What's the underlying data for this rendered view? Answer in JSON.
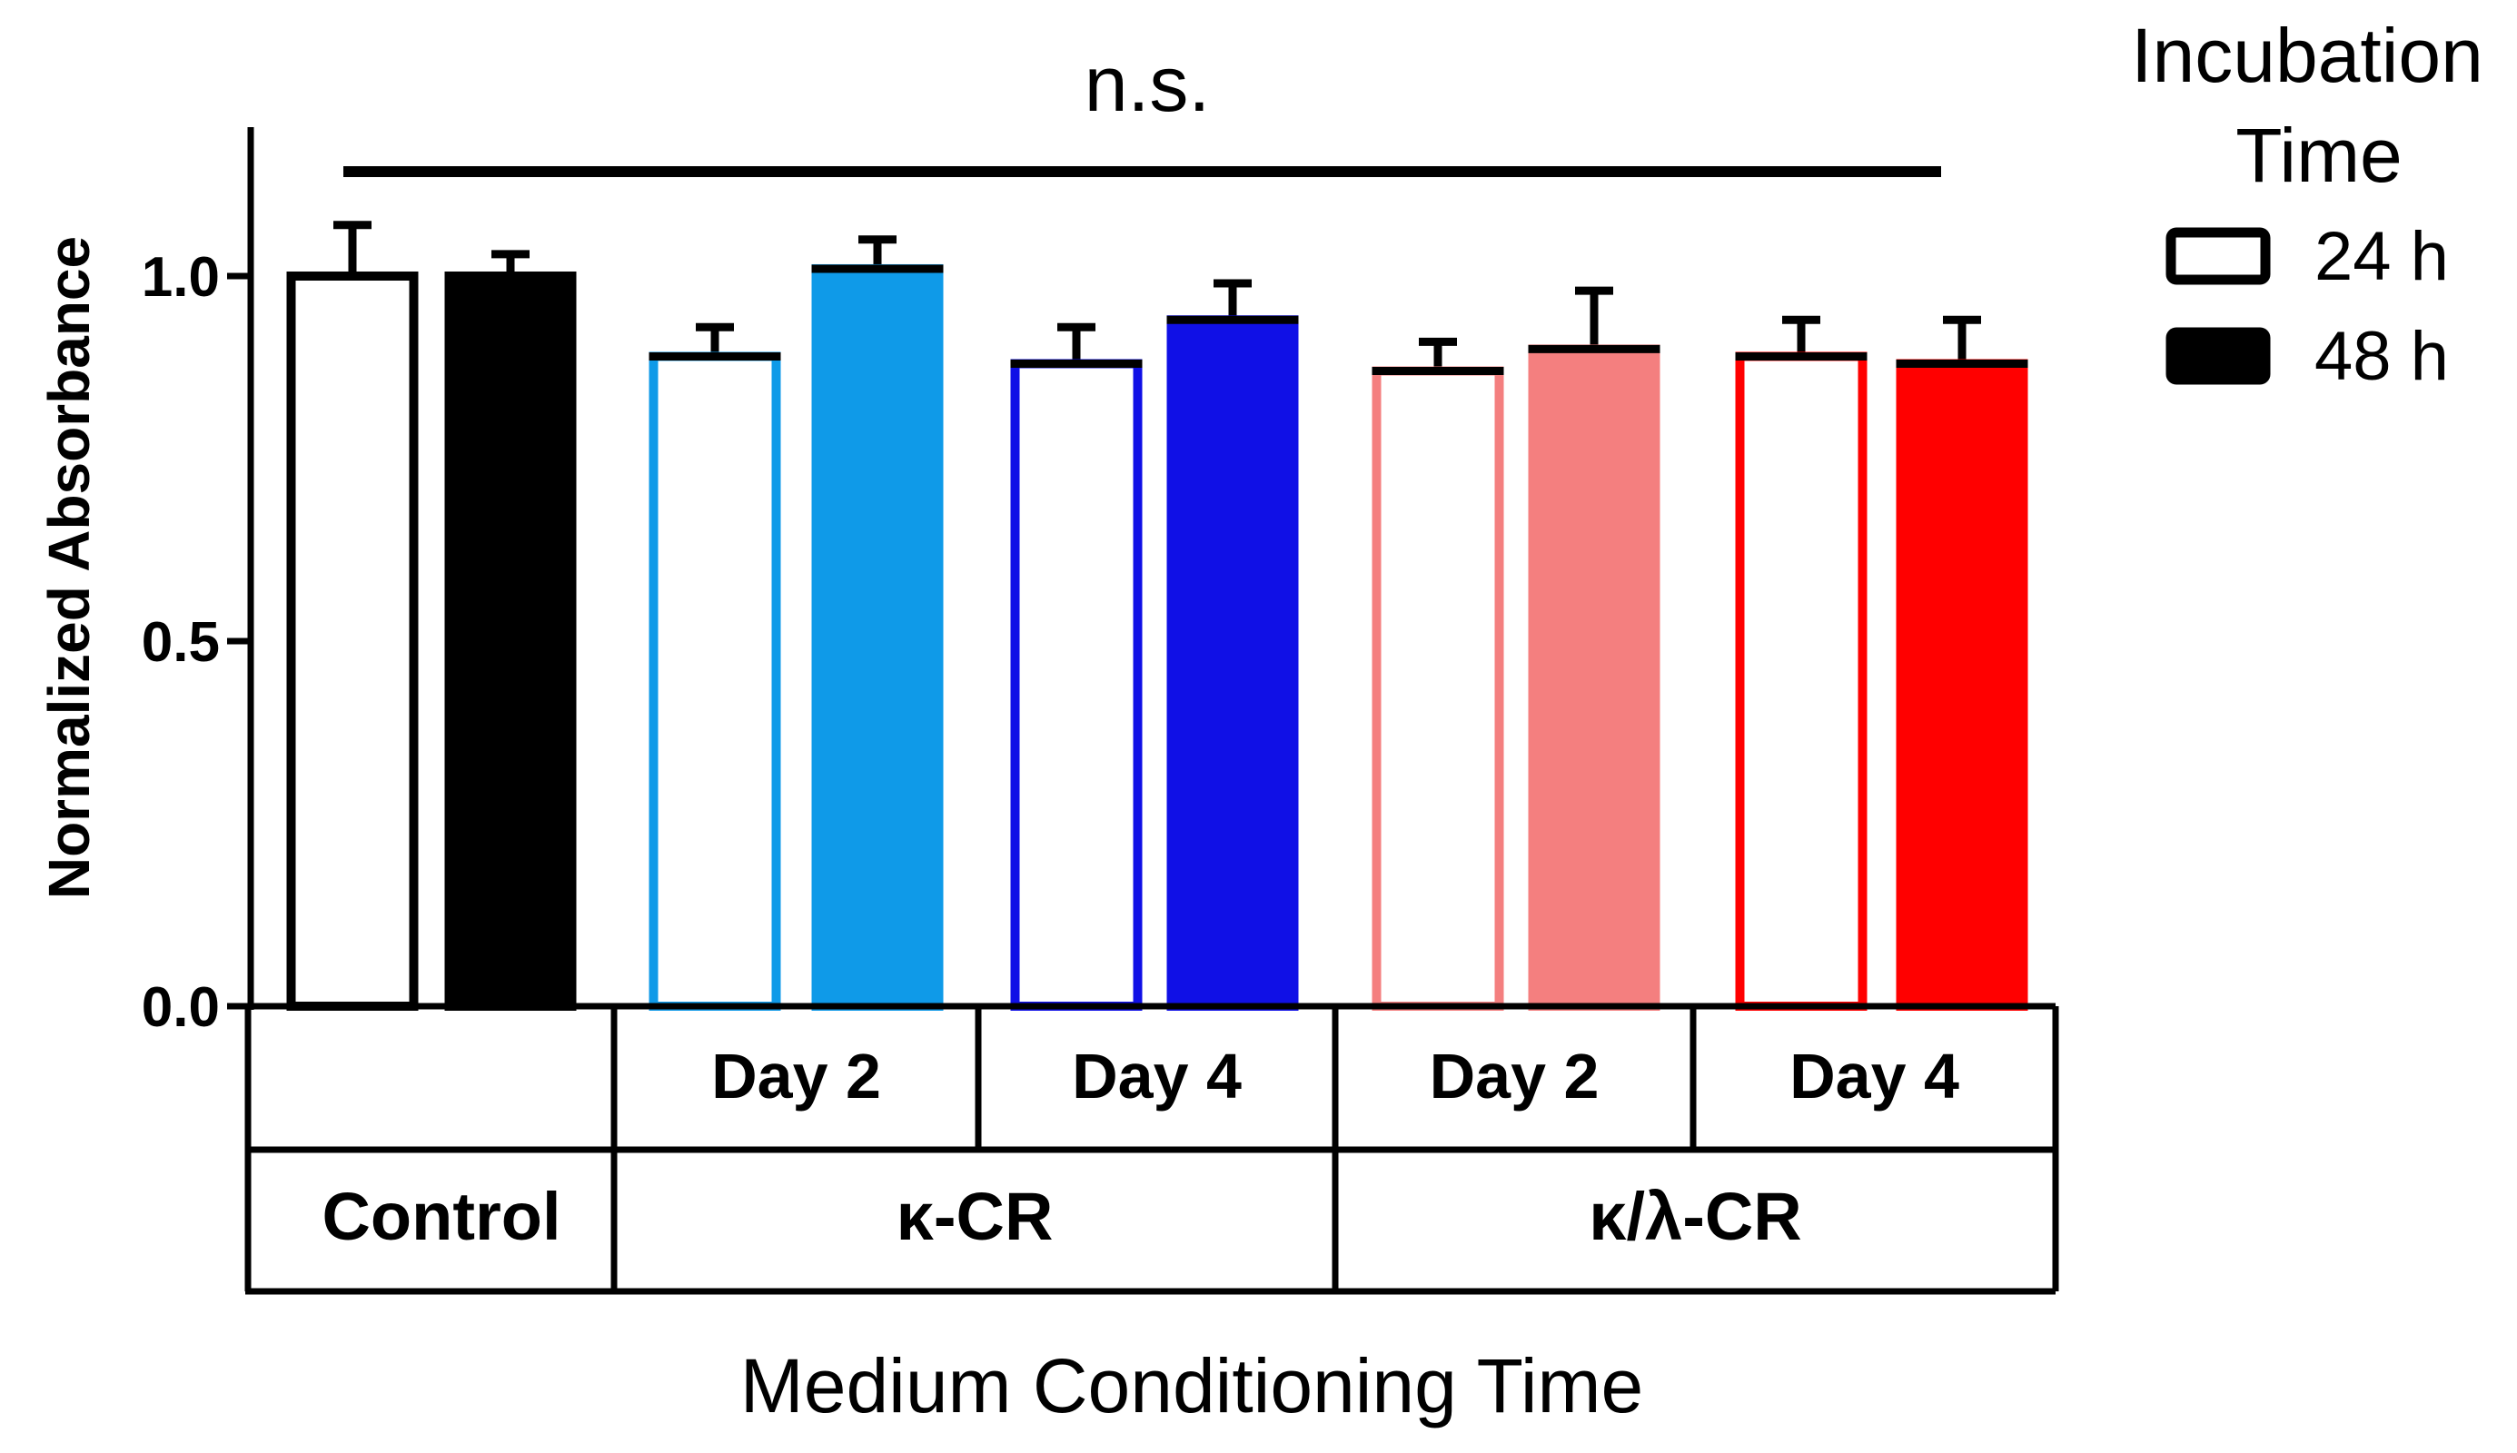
{
  "chart_data": {
    "type": "bar",
    "title": "",
    "ylabel": "Normalized Absorbance",
    "xlabel": "Medium Conditioning Time",
    "ylim": [
      0,
      1.2
    ],
    "yticks": [
      0.0,
      0.5,
      1.0
    ],
    "ytick_labels": [
      "0.0",
      "0.5",
      "1.0"
    ],
    "annotation": "n.s.",
    "legend": {
      "title_lines": [
        "Incubation",
        "Time"
      ],
      "entries": [
        {
          "label": "24 h",
          "style": "open"
        },
        {
          "label": "48 h",
          "style": "filled"
        }
      ],
      "position": "top-right"
    },
    "groups": [
      {
        "group": "Control",
        "conditions": [
          {
            "label": "",
            "color": "#000000",
            "bars": [
              {
                "series": "24 h",
                "value": 1.0,
                "error": 0.07
              },
              {
                "series": "48 h",
                "value": 1.0,
                "error": 0.03
              }
            ]
          }
        ]
      },
      {
        "group": "κ-CR",
        "conditions": [
          {
            "label": "Day 2",
            "color": "#0f9ae8",
            "bars": [
              {
                "series": "24 h",
                "value": 0.89,
                "error": 0.04
              },
              {
                "series": "48 h",
                "value": 1.01,
                "error": 0.04
              }
            ]
          },
          {
            "label": "Day 4",
            "color": "#1010e6",
            "bars": [
              {
                "series": "24 h",
                "value": 0.88,
                "error": 0.05
              },
              {
                "series": "48 h",
                "value": 0.94,
                "error": 0.05
              }
            ]
          }
        ]
      },
      {
        "group": "κ/λ-CR",
        "conditions": [
          {
            "label": "Day 2",
            "color": "#f47f7f",
            "bars": [
              {
                "series": "24 h",
                "value": 0.87,
                "error": 0.04
              },
              {
                "series": "48 h",
                "value": 0.9,
                "error": 0.08
              }
            ]
          },
          {
            "label": "Day 4",
            "color": "#ff0000",
            "bars": [
              {
                "series": "24 h",
                "value": 0.89,
                "error": 0.05
              },
              {
                "series": "48 h",
                "value": 0.88,
                "error": 0.06
              }
            ]
          }
        ]
      }
    ]
  }
}
